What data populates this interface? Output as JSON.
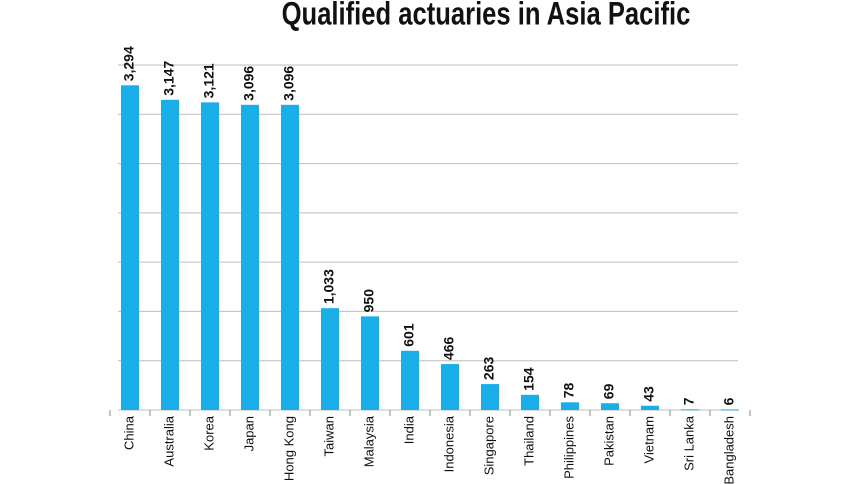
{
  "chart_data": {
    "type": "bar",
    "title": "Qualified actuaries in Asia Pacific",
    "categories": [
      "China",
      "Australia",
      "Korea",
      "Japan",
      "Hong Kong",
      "Taiwan",
      "Malaysia",
      "India",
      "Indonesia",
      "Singapore",
      "Thailand",
      "Philippines",
      "Pakistan",
      "Vietnam",
      "Sri Lanka",
      "Bangladesh"
    ],
    "values": [
      3294,
      3147,
      3121,
      3096,
      3096,
      1033,
      950,
      601,
      466,
      263,
      154,
      78,
      69,
      43,
      7,
      6
    ],
    "value_labels": [
      "3,294",
      "3,147",
      "3,121",
      "3,096",
      "3,096",
      "1,033",
      "950",
      "601",
      "466",
      "263",
      "154",
      "78",
      "69",
      "43",
      "7",
      "6"
    ],
    "color": "#1aaee8",
    "ylim": [
      0,
      3500
    ],
    "yticks": [
      0,
      500,
      1000,
      1500,
      2000,
      2500,
      3000,
      3500
    ],
    "grid": true
  }
}
